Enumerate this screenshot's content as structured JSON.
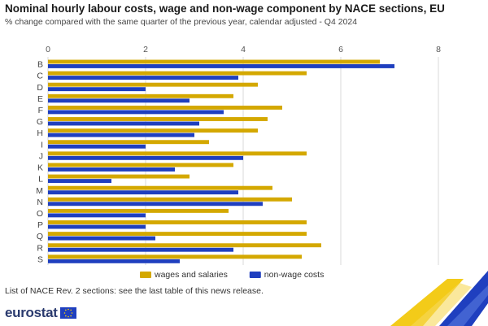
{
  "header": {
    "title": "Nominal hourly labour costs, wage and non-wage component by NACE sections, EU",
    "subtitle": "% change compared with the same quarter of the previous year, calendar adjusted - Q4 2024"
  },
  "footer": {
    "note": "List of NACE Rev. 2 sections: see the last table of this news release.",
    "brand": "eurostat"
  },
  "colors": {
    "wages": "#d4a800",
    "nonwage": "#1f3fbf",
    "grid": "#d9d9d9",
    "brand": "#2a3a6e"
  },
  "chart_data": {
    "type": "bar",
    "orientation": "horizontal",
    "title": "Nominal hourly labour costs, wage and non-wage component by NACE sections, EU",
    "subtitle": "% change compared with the same quarter of the previous year, calendar adjusted - Q4 2024",
    "xlabel": "",
    "ylabel": "",
    "xlim": [
      0,
      8
    ],
    "xticks": [
      0,
      2,
      4,
      6,
      8
    ],
    "grid": true,
    "legend_position": "bottom",
    "categories": [
      "B",
      "C",
      "D",
      "E",
      "F",
      "G",
      "H",
      "I",
      "J",
      "K",
      "L",
      "M",
      "N",
      "O",
      "P",
      "Q",
      "R",
      "S"
    ],
    "series": [
      {
        "name": "wages and salaries",
        "color": "#d4a800",
        "values": [
          6.8,
          5.3,
          4.3,
          3.8,
          4.8,
          4.5,
          4.3,
          3.3,
          5.3,
          3.8,
          2.9,
          4.6,
          5.0,
          3.7,
          5.3,
          5.3,
          5.6,
          5.2
        ]
      },
      {
        "name": "non-wage costs",
        "color": "#1f3fbf",
        "values": [
          7.1,
          3.9,
          2.0,
          2.9,
          3.6,
          3.1,
          3.0,
          2.0,
          4.0,
          2.6,
          1.3,
          3.9,
          4.4,
          2.0,
          2.0,
          2.2,
          3.8,
          2.7
        ]
      }
    ]
  }
}
